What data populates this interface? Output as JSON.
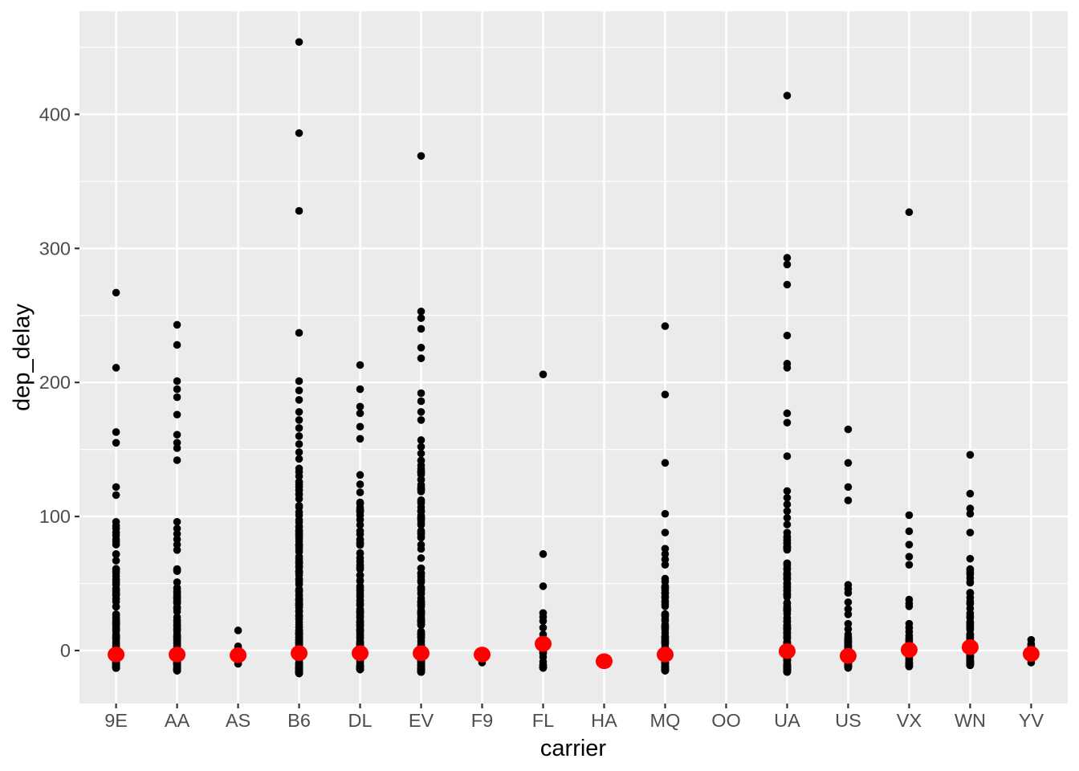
{
  "chart_data": {
    "type": "scatter",
    "title": "",
    "xlabel": "carrier",
    "ylabel": "dep_delay",
    "x_categories": [
      "9E",
      "AA",
      "AS",
      "B6",
      "DL",
      "EV",
      "F9",
      "FL",
      "HA",
      "MQ",
      "OO",
      "UA",
      "US",
      "VX",
      "WN",
      "YV"
    ],
    "y_ticks": [
      0,
      100,
      200,
      300,
      400
    ],
    "y_minor_ticks": [
      50,
      150,
      250,
      350,
      450
    ],
    "ylim": [
      -40,
      477
    ],
    "grid": "on",
    "legend": "none",
    "panel_bg": "#EBEBEB",
    "grid_color": "#FFFFFF",
    "tick_label_color": "#4D4D4D",
    "tick_mark_color": "#333333",
    "point_color": "#000000",
    "summary_point_color": "#FF0000",
    "series": [
      {
        "carrier": "9E",
        "summary": -3,
        "outliers": [
          267,
          211,
          163,
          155,
          122,
          116,
          96,
          93,
          91,
          88,
          86,
          83,
          81,
          79
        ],
        "dense": {
          "min": -13,
          "max": 73,
          "n": 110,
          "bias": 2.6
        }
      },
      {
        "carrier": "AA",
        "summary": -3,
        "outliers": [
          243,
          228,
          201,
          195,
          189,
          176,
          161,
          155,
          151,
          142,
          96,
          91,
          87,
          83,
          79,
          75
        ],
        "dense": {
          "min": -15,
          "max": 62,
          "n": 110,
          "bias": 2.4
        }
      },
      {
        "carrier": "AS",
        "summary": -3.5,
        "outliers": [
          15
        ],
        "dense": {
          "min": -11,
          "max": 4,
          "n": 7,
          "bias": 1.3
        }
      },
      {
        "carrier": "B6",
        "summary": -2,
        "outliers": [
          454,
          386,
          328,
          237,
          201,
          194,
          187,
          178,
          172,
          166,
          160,
          154,
          148,
          143
        ],
        "dense": {
          "min": -17,
          "max": 140,
          "n": 210,
          "bias": 2.8
        }
      },
      {
        "carrier": "DL",
        "summary": -2,
        "outliers": [
          213,
          195,
          182,
          177,
          167,
          158,
          131,
          124,
          118
        ],
        "dense": {
          "min": -14,
          "max": 112,
          "n": 150,
          "bias": 2.8
        }
      },
      {
        "carrier": "EV",
        "summary": -2,
        "outliers": [
          369,
          253,
          248,
          240,
          226,
          218,
          192,
          186,
          178,
          172,
          157,
          152,
          147
        ],
        "dense": {
          "min": -16,
          "max": 143,
          "n": 200,
          "bias": 2.7
        }
      },
      {
        "carrier": "F9",
        "summary": -3,
        "outliers": [],
        "dense": {
          "min": -9,
          "max": 2,
          "n": 7,
          "bias": 1.3
        }
      },
      {
        "carrier": "FL",
        "summary": 5,
        "outliers": [
          206,
          72,
          48,
          28,
          25,
          22,
          17,
          12
        ],
        "dense": {
          "min": -13,
          "max": 10,
          "n": 18,
          "bias": 1.6
        }
      },
      {
        "carrier": "HA",
        "summary": -8,
        "outliers": [
          -8
        ],
        "dense": {
          "min": 0,
          "max": 0,
          "n": 0,
          "bias": 1
        }
      },
      {
        "carrier": "MQ",
        "summary": -3,
        "outliers": [
          242,
          191,
          140,
          102,
          88,
          76,
          72,
          68,
          64
        ],
        "dense": {
          "min": -15,
          "max": 55,
          "n": 90,
          "bias": 2.4
        }
      },
      {
        "carrier": "OO",
        "summary": null,
        "outliers": [],
        "dense": {
          "min": 0,
          "max": 0,
          "n": 0,
          "bias": 1
        }
      },
      {
        "carrier": "UA",
        "summary": -0.5,
        "outliers": [
          414,
          293,
          288,
          273,
          235,
          214,
          211,
          177,
          170,
          145,
          119,
          114,
          109,
          104,
          99,
          94,
          88
        ],
        "dense": {
          "min": -16,
          "max": 85,
          "n": 170,
          "bias": 2.4
        }
      },
      {
        "carrier": "US",
        "summary": -4,
        "outliers": [
          165,
          140,
          122,
          112,
          49,
          46,
          43,
          36,
          31,
          27,
          20,
          16,
          12
        ],
        "dense": {
          "min": -13,
          "max": 10,
          "n": 55,
          "bias": 1.7
        }
      },
      {
        "carrier": "VX",
        "summary": 0.5,
        "outliers": [
          327,
          101,
          89,
          79,
          70,
          64,
          38,
          35,
          33,
          20,
          17,
          14,
          11
        ],
        "dense": {
          "min": -12,
          "max": 10,
          "n": 25,
          "bias": 1.5
        }
      },
      {
        "carrier": "WN",
        "summary": 2.5,
        "outliers": [
          146,
          117,
          106,
          102,
          88
        ],
        "dense": {
          "min": -11,
          "max": 73,
          "n": 90,
          "bias": 2.3
        }
      },
      {
        "carrier": "YV",
        "summary": -2.5,
        "outliers": [
          8
        ],
        "dense": {
          "min": -9,
          "max": 5,
          "n": 8,
          "bias": 1.3
        }
      }
    ]
  }
}
